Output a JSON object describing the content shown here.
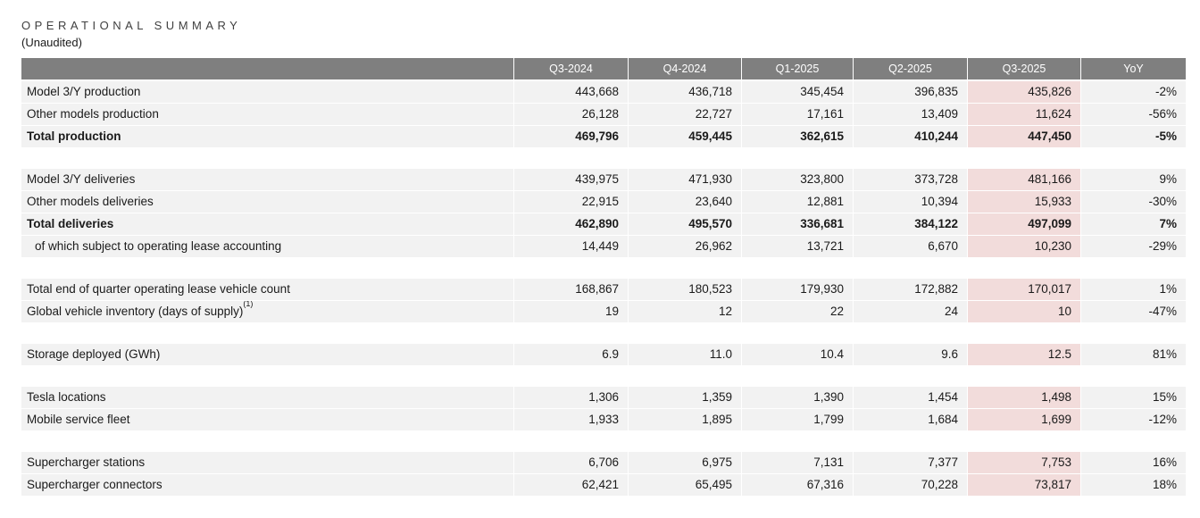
{
  "title": "OPERATIONAL SUMMARY",
  "subtitle": "(Unaudited)",
  "table": {
    "columns": [
      "",
      "Q3-2024",
      "Q4-2024",
      "Q1-2025",
      "Q2-2025",
      "Q3-2025",
      "YoY"
    ],
    "highlight_column": "Q3-2025",
    "colors": {
      "header_bg": "#7f7f7f",
      "header_text": "#ffffff",
      "row_bg": "#f2f2f2",
      "highlight_bg": "#f2dcdb",
      "text": "#1a1a1a"
    },
    "sections": [
      {
        "rows": [
          {
            "label": "Model 3/Y production",
            "bold": false,
            "indent": false,
            "values": [
              "443,668",
              "436,718",
              "345,454",
              "396,835",
              "435,826",
              "-2%"
            ]
          },
          {
            "label": "Other models production",
            "bold": false,
            "indent": false,
            "values": [
              "26,128",
              "22,727",
              "17,161",
              "13,409",
              "11,624",
              "-56%"
            ]
          },
          {
            "label": "Total production",
            "bold": true,
            "indent": false,
            "values": [
              "469,796",
              "459,445",
              "362,615",
              "410,244",
              "447,450",
              "-5%"
            ]
          }
        ]
      },
      {
        "rows": [
          {
            "label": "Model 3/Y deliveries",
            "bold": false,
            "indent": false,
            "values": [
              "439,975",
              "471,930",
              "323,800",
              "373,728",
              "481,166",
              "9%"
            ]
          },
          {
            "label": "Other models deliveries",
            "bold": false,
            "indent": false,
            "values": [
              "22,915",
              "23,640",
              "12,881",
              "10,394",
              "15,933",
              "-30%"
            ]
          },
          {
            "label": "Total deliveries",
            "bold": true,
            "indent": false,
            "values": [
              "462,890",
              "495,570",
              "336,681",
              "384,122",
              "497,099",
              "7%"
            ]
          },
          {
            "label": "of which subject to operating lease accounting",
            "bold": false,
            "indent": true,
            "values": [
              "14,449",
              "26,962",
              "13,721",
              "6,670",
              "10,230",
              "-29%"
            ]
          }
        ]
      },
      {
        "rows": [
          {
            "label": "Total end of quarter operating lease vehicle count",
            "bold": false,
            "indent": false,
            "values": [
              "168,867",
              "180,523",
              "179,930",
              "172,882",
              "170,017",
              "1%"
            ]
          },
          {
            "label": "Global vehicle inventory (days of supply)",
            "label_superscript": "(1)",
            "bold": false,
            "indent": false,
            "values": [
              "19",
              "12",
              "22",
              "24",
              "10",
              "-47%"
            ]
          }
        ]
      },
      {
        "rows": [
          {
            "label": "Storage deployed (GWh)",
            "bold": false,
            "indent": false,
            "values": [
              "6.9",
              "11.0",
              "10.4",
              "9.6",
              "12.5",
              "81%"
            ]
          }
        ]
      },
      {
        "rows": [
          {
            "label": "Tesla locations",
            "bold": false,
            "indent": false,
            "values": [
              "1,306",
              "1,359",
              "1,390",
              "1,454",
              "1,498",
              "15%"
            ]
          },
          {
            "label": "Mobile service fleet",
            "bold": false,
            "indent": false,
            "values": [
              "1,933",
              "1,895",
              "1,799",
              "1,684",
              "1,699",
              "-12%"
            ]
          }
        ]
      },
      {
        "rows": [
          {
            "label": "Supercharger stations",
            "bold": false,
            "indent": false,
            "values": [
              "6,706",
              "6,975",
              "7,131",
              "7,377",
              "7,753",
              "16%"
            ]
          },
          {
            "label": "Supercharger connectors",
            "bold": false,
            "indent": false,
            "values": [
              "62,421",
              "65,495",
              "67,316",
              "70,228",
              "73,817",
              "18%"
            ]
          }
        ]
      }
    ]
  }
}
